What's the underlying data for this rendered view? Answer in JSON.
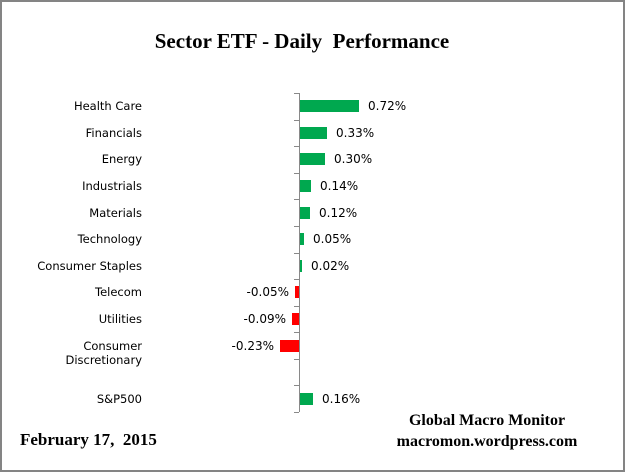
{
  "title": "Sector ETF - Daily  Performance",
  "chart_data": {
    "type": "bar",
    "orientation": "horizontal",
    "title": "Sector ETF - Daily  Performance",
    "categories": [
      "Health Care",
      "Financials",
      "Energy",
      "Industrials",
      "Materials",
      "Technology",
      "Consumer Staples",
      "Telecom",
      "Utilities",
      "Consumer Discretionary",
      "",
      "S&P500"
    ],
    "values": [
      0.72,
      0.33,
      0.3,
      0.14,
      0.12,
      0.05,
      0.02,
      -0.05,
      -0.09,
      -0.23,
      null,
      0.16
    ],
    "value_labels": [
      "0.72%",
      "0.33%",
      "0.30%",
      "0.14%",
      "0.12%",
      "0.05%",
      "0.02%",
      "-0.05%",
      "-0.09%",
      "-0.23%",
      "",
      "0.16%"
    ],
    "value_suffix": "%",
    "xlabel": "",
    "ylabel": "",
    "xlim": [
      -0.3,
      0.8
    ],
    "grid": false,
    "legend": false,
    "data_labels": true
  },
  "colors": {
    "positive_bar": "#00A84F",
    "negative_bar": "#FF0000",
    "axis": "#898989",
    "frame_border": "#848484",
    "text": "#000000"
  },
  "footer": {
    "date": "February 17,  2015",
    "source_line1": "Global Macro Monitor",
    "source_line2": "macromon.wordpress.com"
  },
  "icons": {}
}
